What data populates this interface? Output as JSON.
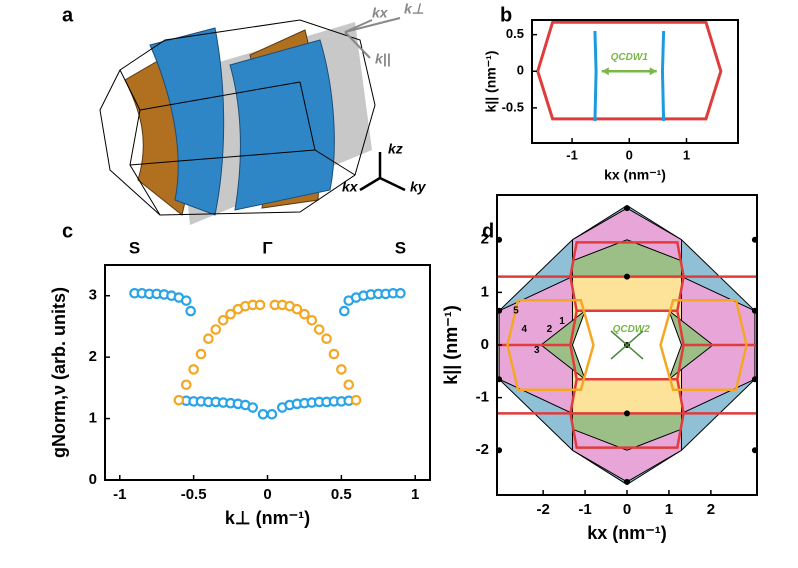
{
  "panel_labels": [
    "a",
    "b",
    "c",
    "d"
  ],
  "panel_a": {
    "labels": [
      "kx",
      "k⊥",
      "k||",
      "kz",
      "kx",
      "ky"
    ]
  },
  "chart_data": [
    {
      "type": "line",
      "xlabel": "kx (nm⁻¹)",
      "ylabel": "k|| (nm⁻¹)",
      "xlim": [
        -1.7,
        1.9
      ],
      "ylim": [
        -0.98,
        0.7
      ],
      "xticks": [
        -1,
        0,
        1
      ],
      "yticks": [
        -0.5,
        0,
        0.5
      ],
      "annotations": [
        "QCDW1"
      ],
      "series": [
        {
          "color": "#e03c3c",
          "x": [
            -1.6,
            -1.34,
            1.34,
            1.6,
            1.34,
            -1.34,
            -1.6
          ],
          "y": [
            0,
            0.67,
            0.67,
            0,
            -0.65,
            -0.65,
            0
          ]
        },
        {
          "color": "#1e9be0",
          "x": [
            -0.6,
            -0.58,
            -0.6
          ],
          "y": [
            0.55,
            0,
            -0.68
          ]
        },
        {
          "color": "#1e9be0",
          "x": [
            0.6,
            0.58,
            0.6
          ],
          "y": [
            0.55,
            0,
            -0.68
          ]
        }
      ]
    },
    {
      "type": "scatter",
      "xlabel": "k⊥ (nm⁻¹)",
      "ylabel": "gNorm,ν (arb. units)",
      "xlim": [
        -1.1,
        1.1
      ],
      "ylim": [
        0,
        3.5
      ],
      "xticks": [
        -1,
        -0.5,
        0,
        0.5,
        1
      ],
      "yticks": [
        0,
        1,
        2,
        3
      ],
      "top_labels": [
        {
          "value": -0.9,
          "label": "S"
        },
        {
          "value": 0,
          "label": "Γ"
        },
        {
          "value": 0.9,
          "label": "S"
        }
      ],
      "series": [
        {
          "color": "#29a3e8",
          "x": [
            -0.9,
            -0.85,
            -0.8,
            -0.75,
            -0.7,
            -0.65,
            -0.6,
            -0.55,
            -0.52,
            -0.55,
            -0.5,
            -0.45,
            -0.4,
            -0.35,
            -0.3,
            -0.25,
            -0.2,
            -0.15,
            -0.1,
            -0.03,
            0.03,
            0.1,
            0.15,
            0.2,
            0.25,
            0.3,
            0.35,
            0.4,
            0.45,
            0.5,
            0.55,
            0.52,
            0.55,
            0.6,
            0.65,
            0.7,
            0.75,
            0.8,
            0.85,
            0.9
          ],
          "y": [
            3.04,
            3.04,
            3.03,
            3.03,
            3.02,
            3.0,
            2.97,
            2.92,
            2.75,
            1.29,
            1.28,
            1.28,
            1.27,
            1.27,
            1.26,
            1.25,
            1.24,
            1.22,
            1.18,
            1.07,
            1.07,
            1.18,
            1.22,
            1.24,
            1.25,
            1.26,
            1.27,
            1.27,
            1.28,
            1.28,
            1.29,
            2.75,
            2.92,
            2.97,
            3.0,
            3.02,
            3.03,
            3.03,
            3.04,
            3.04
          ]
        },
        {
          "color": "#f5a623",
          "x": [
            -0.6,
            -0.55,
            -0.5,
            -0.45,
            -0.4,
            -0.35,
            -0.3,
            -0.25,
            -0.2,
            -0.15,
            -0.1,
            -0.05,
            0.05,
            0.1,
            0.15,
            0.2,
            0.25,
            0.3,
            0.35,
            0.4,
            0.45,
            0.5,
            0.55,
            0.6
          ],
          "y": [
            1.3,
            1.55,
            1.8,
            2.05,
            2.3,
            2.45,
            2.6,
            2.7,
            2.78,
            2.83,
            2.85,
            2.85,
            2.85,
            2.85,
            2.83,
            2.78,
            2.7,
            2.6,
            2.45,
            2.3,
            2.05,
            1.8,
            1.55,
            1.3
          ]
        }
      ]
    },
    {
      "type": "area",
      "xlabel": "kx (nm⁻¹)",
      "ylabel": "k|| (nm⁻¹)",
      "xlim": [
        -3.1,
        3.1
      ],
      "ylim": [
        -2.85,
        2.85
      ],
      "xticks": [
        -2,
        -1,
        0,
        1,
        2
      ],
      "yticks": [
        -2,
        -1,
        0,
        1,
        2
      ],
      "annotations": [
        "1",
        "2",
        "3",
        "4",
        "5",
        "QCDW2"
      ],
      "series": [
        {
          "color": "#000000",
          "fill": "#8fc0d6",
          "x": [
            0,
            1.3,
            3.05,
            3.05,
            1.3,
            0,
            -1.3,
            -3.05,
            -3.05,
            -1.3,
            0
          ],
          "y": [
            2.65,
            2.0,
            0.65,
            -0.65,
            -2.0,
            -2.65,
            -2.0,
            -0.65,
            0.65,
            2.0,
            2.65
          ]
        },
        {
          "color": "#000000",
          "fill": "#e8a6d8",
          "x": [
            -1.3,
            0,
            1.3,
            1.3,
            -1.3,
            -1.3
          ],
          "y": [
            2.0,
            2.6,
            2.0,
            0.65,
            0.65,
            2.0
          ]
        },
        {
          "color": "#000000",
          "fill": "#e8a6d8",
          "x": [
            -1.3,
            0,
            1.3,
            1.3,
            -1.3,
            -1.3
          ],
          "y": [
            -2.0,
            -2.6,
            -2.0,
            -0.65,
            -0.65,
            -2.0
          ]
        },
        {
          "color": "#000000",
          "fill": "#e8a6d8",
          "x": [
            -3.05,
            -1.3,
            -1.3,
            -3.05,
            -3.05
          ],
          "y": [
            0.65,
            1.3,
            -1.3,
            -0.65,
            0.65
          ]
        },
        {
          "color": "#000000",
          "fill": "#e8a6d8",
          "x": [
            3.05,
            1.3,
            1.3,
            3.05,
            3.05
          ],
          "y": [
            0.65,
            1.3,
            -1.3,
            -0.65,
            0.65
          ]
        },
        {
          "color": "#000000",
          "fill": "#9bbf86",
          "x": [
            -1.3,
            -1.3,
            0,
            1.3,
            1.3,
            -1.3
          ],
          "y": [
            1.3,
            1.6,
            2.0,
            1.6,
            1.3,
            1.3
          ]
        },
        {
          "color": "#000000",
          "fill": "#9bbf86",
          "x": [
            -1.3,
            -1.3,
            0,
            1.3,
            1.3,
            -1.3
          ],
          "y": [
            -1.3,
            -1.6,
            -2.0,
            -1.6,
            -1.3,
            -1.3
          ]
        },
        {
          "color": "#000000",
          "fill": "#fde39a",
          "x": [
            -1.3,
            1.3,
            1.3,
            -1.3,
            -1.3
          ],
          "y": [
            1.3,
            1.3,
            -1.3,
            -1.3,
            1.3
          ]
        },
        {
          "color": "#000000",
          "fill": "#9bbf86",
          "x": [
            -2.05,
            -1.0,
            -1.0,
            -2.05
          ],
          "y": [
            0,
            0.65,
            -0.65,
            0
          ]
        },
        {
          "color": "#000000",
          "fill": "#9bbf86",
          "x": [
            2.05,
            1.0,
            1.0,
            2.05
          ],
          "y": [
            0,
            0.65,
            -0.65,
            0
          ]
        },
        {
          "color": "#000000",
          "fill": "#ffffff",
          "x": [
            -1.0,
            1.0,
            1.3,
            1.0,
            -1.0,
            -1.3,
            -1.0
          ],
          "y": [
            0.65,
            0.65,
            0,
            -0.65,
            -0.65,
            0,
            0.65
          ]
        },
        {
          "color": "#e03c3c",
          "fill": "none",
          "x": [
            -1.35,
            -1.2,
            1.2,
            1.35,
            1.2,
            -1.2,
            -1.35
          ],
          "y": [
            0,
            0.65,
            0.65,
            0,
            -0.65,
            -0.65,
            0
          ]
        },
        {
          "color": "#e03c3c",
          "fill": "none",
          "x": [
            -1.35,
            -1.2,
            1.2,
            1.35,
            1.2,
            -1.2,
            -1.35
          ],
          "y": [
            1.3,
            1.95,
            1.95,
            1.3,
            0.65,
            0.65,
            1.3
          ]
        },
        {
          "color": "#e03c3c",
          "fill": "none",
          "x": [
            -1.35,
            -1.2,
            1.2,
            1.35,
            1.2,
            -1.2,
            -1.35
          ],
          "y": [
            -1.3,
            -0.65,
            -0.65,
            -1.3,
            -1.95,
            -1.95,
            -1.3
          ]
        },
        {
          "color": "#e03c3c",
          "fill": "none",
          "x": [
            -3.1,
            3.1
          ],
          "y": [
            1.3,
            1.3
          ]
        },
        {
          "color": "#e03c3c",
          "fill": "none",
          "x": [
            -3.1,
            3.1
          ],
          "y": [
            -1.3,
            -1.3
          ]
        },
        {
          "color": "#e03c3c",
          "fill": "none",
          "x": [
            -3.1,
            -1.35
          ],
          "y": [
            0,
            0
          ]
        },
        {
          "color": "#e03c3c",
          "fill": "none",
          "x": [
            1.35,
            3.1
          ],
          "y": [
            0,
            0
          ]
        },
        {
          "color": "#f5a623",
          "fill": "none",
          "x": [
            -2.85,
            -2.6,
            -1.1,
            -0.8,
            -1.1,
            -2.6,
            -2.85
          ],
          "y": [
            0,
            0.85,
            0.85,
            0,
            -0.85,
            -0.85,
            0
          ]
        },
        {
          "color": "#f5a623",
          "fill": "none",
          "x": [
            2.85,
            2.6,
            1.1,
            0.8,
            1.1,
            2.6,
            2.85
          ],
          "y": [
            0,
            0.85,
            0.85,
            0,
            -0.85,
            -0.85,
            0
          ]
        },
        {
          "color": "#000000",
          "marker": true,
          "x": [
            0,
            0,
            0,
            0,
            0,
            -3.05,
            3.05,
            -3.05,
            3.05,
            -3.05,
            3.05,
            -3.05,
            3.05
          ],
          "y": [
            0,
            1.3,
            -1.3,
            2.6,
            -2.6,
            2.0,
            2.0,
            -2.0,
            -2.0,
            0.65,
            0.65,
            -0.65,
            -0.65
          ]
        }
      ]
    }
  ]
}
